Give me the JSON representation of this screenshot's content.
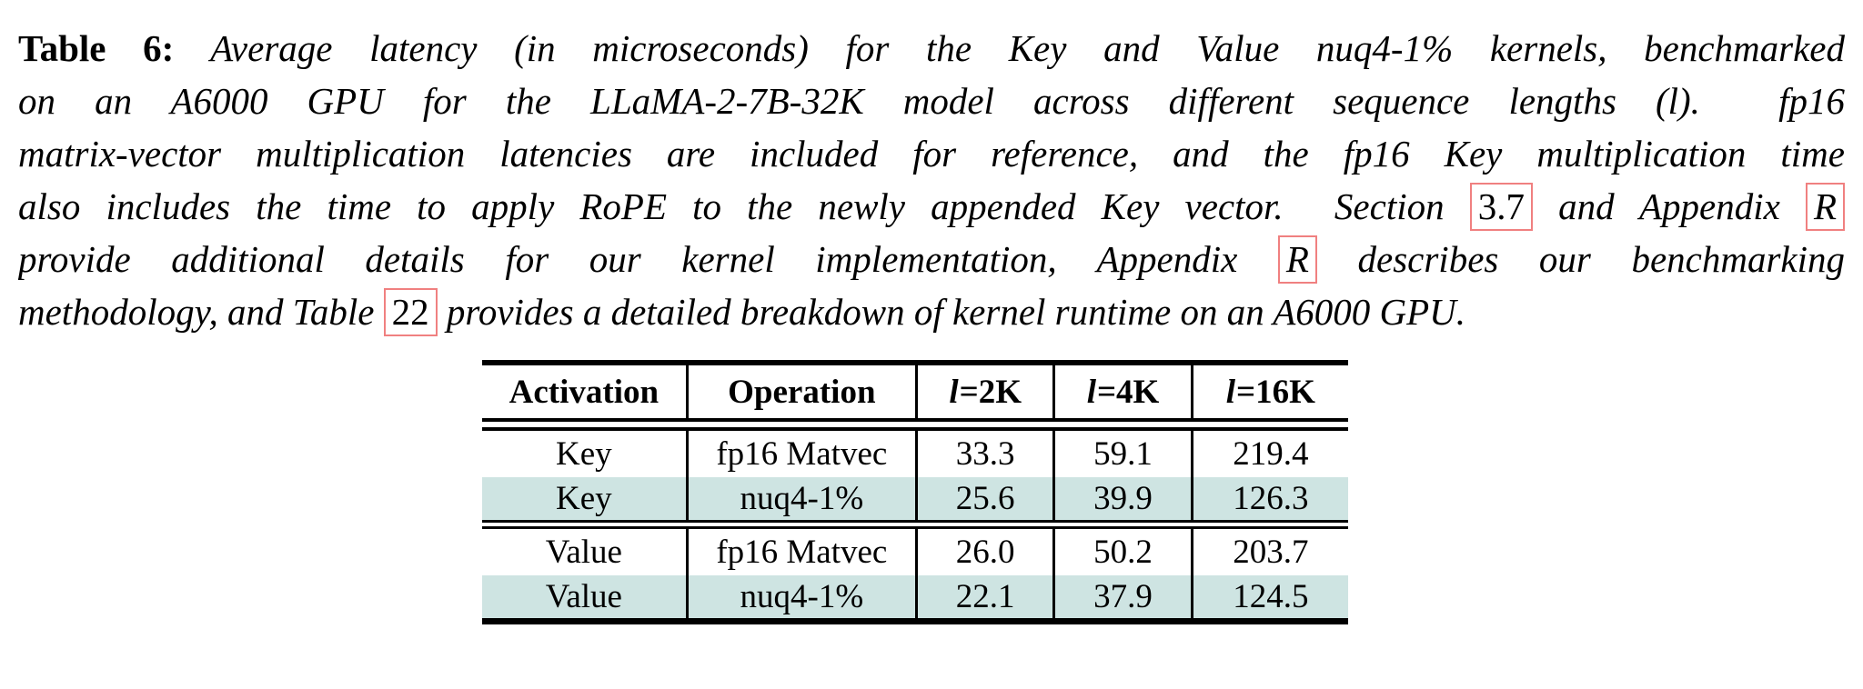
{
  "caption": {
    "lines": [
      {
        "justify": true,
        "segments": [
          {
            "t": "Table 6:",
            "s": "bold",
            "name": "caption-label"
          },
          {
            "t": " Average latency (in microseconds) for the Key and Value nuq4-1% kernels, benchmarked",
            "s": "italic",
            "name": "caption-text"
          }
        ]
      },
      {
        "justify": true,
        "segments": [
          {
            "t": "on an A6000 GPU for the LLaMA-2-7B-32K model across different sequence lengths (l).  fp16",
            "s": "italic",
            "name": "caption-text"
          }
        ]
      },
      {
        "justify": true,
        "segments": [
          {
            "t": "matrix-vector multiplication latencies are included for reference, and the fp16 Key multiplication time",
            "s": "italic",
            "name": "caption-text"
          }
        ]
      },
      {
        "justify": true,
        "segments": [
          {
            "t": "also includes the time to apply RoPE to the newly appended Key vector.  Section ",
            "s": "italic",
            "name": "caption-text"
          },
          {
            "t": "3.7",
            "s": "ref",
            "name": "section-3-7-ref-link"
          },
          {
            "t": " and Appendix ",
            "s": "italic",
            "name": "caption-text"
          },
          {
            "t": "R",
            "s": "ref-italic",
            "name": "appendix-r-ref-link"
          }
        ]
      },
      {
        "justify": true,
        "segments": [
          {
            "t": "provide additional details for our kernel implementation, Appendix ",
            "s": "italic",
            "name": "caption-text"
          },
          {
            "t": "R",
            "s": "ref-italic",
            "name": "appendix-r-ref-link"
          },
          {
            "t": " describes our benchmarking",
            "s": "italic",
            "name": "caption-text"
          }
        ]
      },
      {
        "justify": false,
        "segments": [
          {
            "t": "methodology, and Table ",
            "s": "italic",
            "name": "caption-text"
          },
          {
            "t": "22",
            "s": "ref",
            "name": "table-22-ref-link"
          },
          {
            "t": " provides a detailed breakdown of kernel runtime on an A6000 GPU.",
            "s": "italic",
            "name": "caption-text"
          }
        ]
      }
    ]
  },
  "table": {
    "headers": [
      {
        "math": "",
        "text": "Activation",
        "name": "header-cell-activation"
      },
      {
        "math": "",
        "text": "Operation",
        "name": "header-cell-operation"
      },
      {
        "math": "l",
        "text": "=2K",
        "name": "header-cell-l2k"
      },
      {
        "math": "l",
        "text": "=4K",
        "name": "header-cell-l4k"
      },
      {
        "math": "l",
        "text": "=16K",
        "name": "header-cell-l16k"
      }
    ],
    "groups": [
      {
        "rows": [
          {
            "cells": [
              "Key",
              "fp16 Matvec",
              "33.3",
              "59.1",
              "219.4"
            ],
            "highlight": false
          },
          {
            "cells": [
              "Key",
              "nuq4-1%",
              "25.6",
              "39.9",
              "126.3"
            ],
            "highlight": true
          }
        ]
      },
      {
        "rows": [
          {
            "cells": [
              "Value",
              "fp16 Matvec",
              "26.0",
              "50.2",
              "203.7"
            ],
            "highlight": false
          },
          {
            "cells": [
              "Value",
              "nuq4-1%",
              "22.1",
              "37.9",
              "124.5"
            ],
            "highlight": true
          }
        ]
      }
    ]
  },
  "colors": {
    "text": "#000000",
    "rule": "#000000",
    "row_highlight": "#cee4e2",
    "ref_box_border": "#f08080"
  }
}
